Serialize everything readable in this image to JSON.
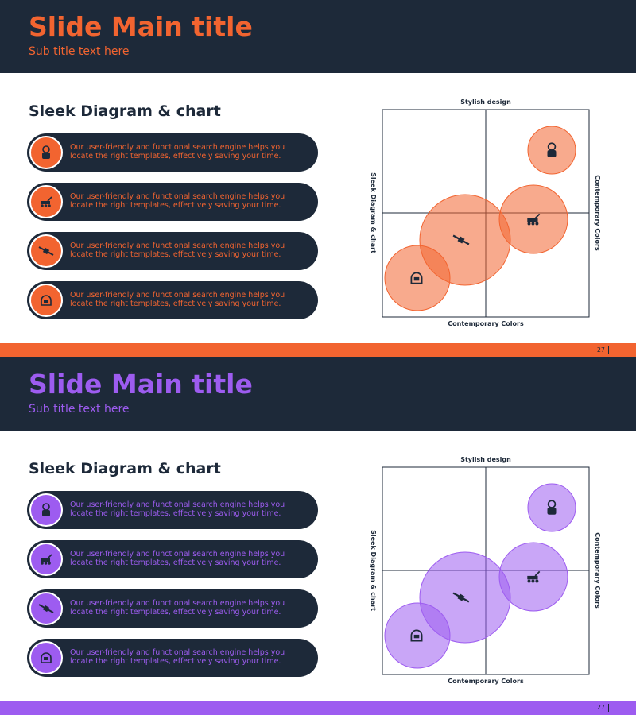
{
  "slides": [
    {
      "title": "Slide Main title",
      "subtitle": "Sub title text here",
      "heading": "Sleek Diagram & chart",
      "items": [
        "Our user-friendly and functional search engine helps you locate the right templates, effectively saving your time.",
        "Our user-friendly and functional search engine helps you locate the right templates, effectively saving your time.",
        "Our user-friendly and functional search engine helps you locate the right templates, effectively saving your time.",
        "Our user-friendly and functional search engine helps you locate the right templates, effectively saving your time."
      ],
      "diagram": {
        "top_label": "Stylish design",
        "bottom_label": "Contemporary Colors",
        "left_label": "Sleek Diagram & chart",
        "right_label": "Contemporary Colors"
      },
      "page_number": 27,
      "accent": "#f26430"
    },
    {
      "title": "Slide Main title",
      "subtitle": "Sub title text here",
      "heading": "Sleek Diagram & chart",
      "items": [
        "Our user-friendly and functional search engine helps you locate the right templates, effectively saving your time.",
        "Our user-friendly and functional search engine helps you locate the right templates, effectively saving your time.",
        "Our user-friendly and functional search engine helps you locate the right templates, effectively saving your time.",
        "Our user-friendly and functional search engine helps you locate the right templates, effectively saving your time."
      ],
      "diagram": {
        "top_label": "Stylish design",
        "bottom_label": "Contemporary Colors",
        "left_label": "Sleek Diagram & chart",
        "right_label": "Contemporary Colors"
      },
      "page_number": 27,
      "accent": "#9d5cf0"
    }
  ]
}
